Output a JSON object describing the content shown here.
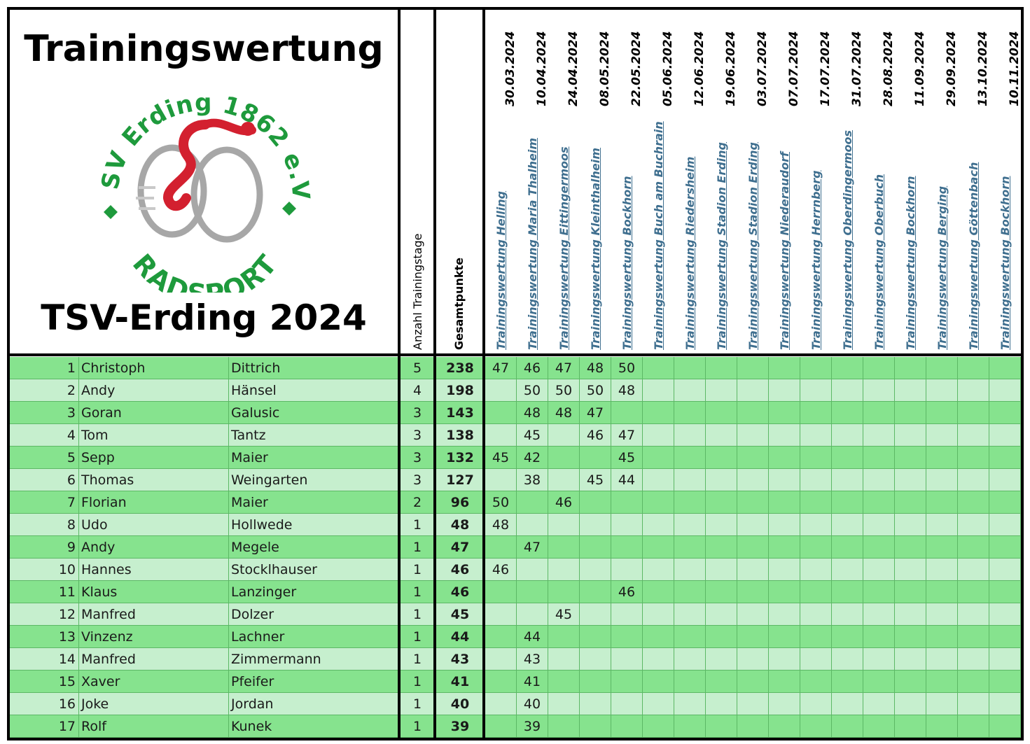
{
  "title": "Trainingswertung",
  "subtitle": "TSV-Erding 2024",
  "logo": {
    "ring_text": "TSV Erding 1862 e.V.",
    "bottom_text": "RADSPORT",
    "green": "#1e9a3c",
    "red": "#d3202f"
  },
  "columns": {
    "trainingstage": "Anzahl Trainingstage",
    "gesamt": "Gesamtpunkte"
  },
  "sessions": [
    {
      "date": "30.03.2024",
      "link": "Trainingswertung Helling"
    },
    {
      "date": "10.04.2024",
      "link": "Trainingswertung Maria Thalheim"
    },
    {
      "date": "24.04.2024",
      "link": "Trainingswertung Eittingermoos"
    },
    {
      "date": "08.05.2024",
      "link": "Trainingswertung Kleinthalheim"
    },
    {
      "date": "22.05.2024",
      "link": "Trainingswertung Bockhorn"
    },
    {
      "date": "05.06.2024",
      "link": "Trainingswertung Buch am Buchrain"
    },
    {
      "date": "12.06.2024",
      "link": "Trainingswertung Riedersheim"
    },
    {
      "date": "19.06.2024",
      "link": "Trainingswertung Stadion Erding"
    },
    {
      "date": "03.07.2024",
      "link": "Trainingswertung Stadion Erding"
    },
    {
      "date": "07.07.2024",
      "link": "Trainingswertung Niederaudorf"
    },
    {
      "date": "17.07.2024",
      "link": "Trainingswertung Herrnberg"
    },
    {
      "date": "31.07.2024",
      "link": "Trainingswertung Oberdingermoos"
    },
    {
      "date": "28.08.2024",
      "link": "Trainingswertung Oberbuch"
    },
    {
      "date": "11.09.2024",
      "link": "Trainingswertung Bockhorn"
    },
    {
      "date": "29.09.2024",
      "link": "Trainingswertung Berging"
    },
    {
      "date": "13.10.2024",
      "link": "Trainingswertung Göttenbach"
    },
    {
      "date": "10.11.2024",
      "link": "Trainingswertung Bockhorn"
    }
  ],
  "rows": [
    {
      "rank": "1",
      "first": "Christoph",
      "last": "Dittrich",
      "days": "5",
      "total": "238",
      "scores": [
        "47",
        "46",
        "47",
        "48",
        "50",
        "",
        "",
        "",
        "",
        "",
        "",
        "",
        "",
        "",
        "",
        "",
        ""
      ]
    },
    {
      "rank": "2",
      "first": "Andy",
      "last": "Hänsel",
      "days": "4",
      "total": "198",
      "scores": [
        "",
        "50",
        "50",
        "50",
        "48",
        "",
        "",
        "",
        "",
        "",
        "",
        "",
        "",
        "",
        "",
        "",
        ""
      ]
    },
    {
      "rank": "3",
      "first": "Goran",
      "last": "Galusic",
      "days": "3",
      "total": "143",
      "scores": [
        "",
        "48",
        "48",
        "47",
        "",
        "",
        "",
        "",
        "",
        "",
        "",
        "",
        "",
        "",
        "",
        "",
        ""
      ]
    },
    {
      "rank": "4",
      "first": "Tom",
      "last": "Tantz",
      "days": "3",
      "total": "138",
      "scores": [
        "",
        "45",
        "",
        "46",
        "47",
        "",
        "",
        "",
        "",
        "",
        "",
        "",
        "",
        "",
        "",
        "",
        ""
      ]
    },
    {
      "rank": "5",
      "first": "Sepp",
      "last": "Maier",
      "days": "3",
      "total": "132",
      "scores": [
        "45",
        "42",
        "",
        "",
        "45",
        "",
        "",
        "",
        "",
        "",
        "",
        "",
        "",
        "",
        "",
        "",
        ""
      ]
    },
    {
      "rank": "6",
      "first": "Thomas",
      "last": "Weingarten",
      "days": "3",
      "total": "127",
      "scores": [
        "",
        "38",
        "",
        "45",
        "44",
        "",
        "",
        "",
        "",
        "",
        "",
        "",
        "",
        "",
        "",
        "",
        ""
      ]
    },
    {
      "rank": "7",
      "first": "Florian",
      "last": "Maier",
      "days": "2",
      "total": "96",
      "scores": [
        "50",
        "",
        "46",
        "",
        "",
        "",
        "",
        "",
        "",
        "",
        "",
        "",
        "",
        "",
        "",
        "",
        ""
      ]
    },
    {
      "rank": "8",
      "first": "Udo",
      "last": "Hollwede",
      "days": "1",
      "total": "48",
      "scores": [
        "48",
        "",
        "",
        "",
        "",
        "",
        "",
        "",
        "",
        "",
        "",
        "",
        "",
        "",
        "",
        "",
        ""
      ]
    },
    {
      "rank": "9",
      "first": "Andy",
      "last": "Megele",
      "days": "1",
      "total": "47",
      "scores": [
        "",
        "47",
        "",
        "",
        "",
        "",
        "",
        "",
        "",
        "",
        "",
        "",
        "",
        "",
        "",
        "",
        ""
      ]
    },
    {
      "rank": "10",
      "first": "Hannes",
      "last": "Stocklhauser",
      "days": "1",
      "total": "46",
      "scores": [
        "46",
        "",
        "",
        "",
        "",
        "",
        "",
        "",
        "",
        "",
        "",
        "",
        "",
        "",
        "",
        "",
        ""
      ]
    },
    {
      "rank": "11",
      "first": "Klaus",
      "last": "Lanzinger",
      "days": "1",
      "total": "46",
      "scores": [
        "",
        "",
        "",
        "",
        "46",
        "",
        "",
        "",
        "",
        "",
        "",
        "",
        "",
        "",
        "",
        "",
        ""
      ]
    },
    {
      "rank": "12",
      "first": "Manfred",
      "last": "Dolzer",
      "days": "1",
      "total": "45",
      "scores": [
        "",
        "",
        "45",
        "",
        "",
        "",
        "",
        "",
        "",
        "",
        "",
        "",
        "",
        "",
        "",
        "",
        ""
      ]
    },
    {
      "rank": "13",
      "first": "Vinzenz",
      "last": "Lachner",
      "days": "1",
      "total": "44",
      "scores": [
        "",
        "44",
        "",
        "",
        "",
        "",
        "",
        "",
        "",
        "",
        "",
        "",
        "",
        "",
        "",
        "",
        ""
      ]
    },
    {
      "rank": "14",
      "first": "Manfred",
      "last": "Zimmermann",
      "days": "1",
      "total": "43",
      "scores": [
        "",
        "43",
        "",
        "",
        "",
        "",
        "",
        "",
        "",
        "",
        "",
        "",
        "",
        "",
        "",
        "",
        ""
      ]
    },
    {
      "rank": "15",
      "first": "Xaver",
      "last": "Pfeifer",
      "days": "1",
      "total": "41",
      "scores": [
        "",
        "41",
        "",
        "",
        "",
        "",
        "",
        "",
        "",
        "",
        "",
        "",
        "",
        "",
        "",
        "",
        ""
      ]
    },
    {
      "rank": "16",
      "first": "Joke",
      "last": "Jordan",
      "days": "1",
      "total": "40",
      "scores": [
        "",
        "40",
        "",
        "",
        "",
        "",
        "",
        "",
        "",
        "",
        "",
        "",
        "",
        "",
        "",
        "",
        ""
      ]
    },
    {
      "rank": "17",
      "first": "Rolf",
      "last": "Kunek",
      "days": "1",
      "total": "39",
      "scores": [
        "",
        "39",
        "",
        "",
        "",
        "",
        "",
        "",
        "",
        "",
        "",
        "",
        "",
        "",
        "",
        "",
        ""
      ]
    }
  ],
  "colors": {
    "row_dark": "#86e38e",
    "row_light": "#c6efce",
    "grid": "#5cb865",
    "link": "#3f6f8f",
    "border": "#000000"
  }
}
